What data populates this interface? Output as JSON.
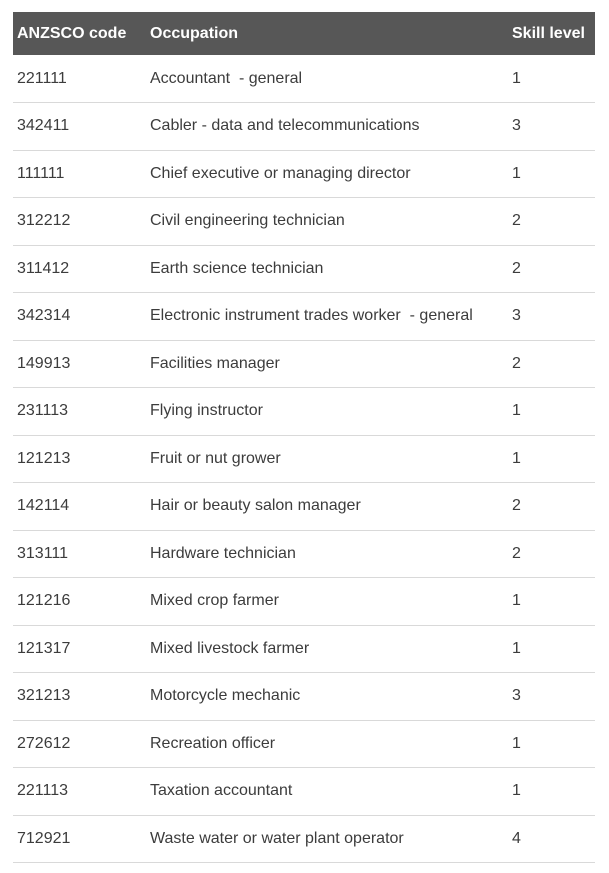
{
  "table": {
    "columns": [
      {
        "key": "code",
        "label": "ANZSCO code"
      },
      {
        "key": "occupation",
        "label": "Occupation"
      },
      {
        "key": "skill",
        "label": "Skill level"
      }
    ],
    "rows": [
      {
        "code": "221111",
        "occupation": "Accountant  - general",
        "skill": "1"
      },
      {
        "code": "342411",
        "occupation": "Cabler - data and telecommunications",
        "skill": "3"
      },
      {
        "code": "111111",
        "occupation": "Chief executive or managing director",
        "skill": "1"
      },
      {
        "code": "312212",
        "occupation": "Civil engineering technician",
        "skill": "2"
      },
      {
        "code": "311412",
        "occupation": "Earth science technician",
        "skill": "2"
      },
      {
        "code": "342314",
        "occupation": "Electronic instrument trades worker  - general",
        "skill": "3"
      },
      {
        "code": "149913",
        "occupation": "Facilities manager",
        "skill": "2"
      },
      {
        "code": "231113",
        "occupation": "Flying instructor",
        "skill": "1"
      },
      {
        "code": "121213",
        "occupation": "Fruit or nut grower",
        "skill": "1"
      },
      {
        "code": "142114",
        "occupation": "Hair or beauty salon manager",
        "skill": "2"
      },
      {
        "code": "313111",
        "occupation": "Hardware technician",
        "skill": "2"
      },
      {
        "code": "121216",
        "occupation": "Mixed crop farmer",
        "skill": "1"
      },
      {
        "code": "121317",
        "occupation": "Mixed livestock farmer",
        "skill": "1"
      },
      {
        "code": "321213",
        "occupation": "Motorcycle mechanic",
        "skill": "3"
      },
      {
        "code": "272612",
        "occupation": "Recreation officer",
        "skill": "1"
      },
      {
        "code": "221113",
        "occupation": "Taxation accountant",
        "skill": "1"
      },
      {
        "code": "712921",
        "occupation": "Waste water or water plant operator",
        "skill": "4"
      }
    ],
    "colors": {
      "header_bg": "#575757",
      "header_text": "#ffffff",
      "body_text": "#3c3c3c",
      "divider": "#d9d9d9"
    }
  }
}
